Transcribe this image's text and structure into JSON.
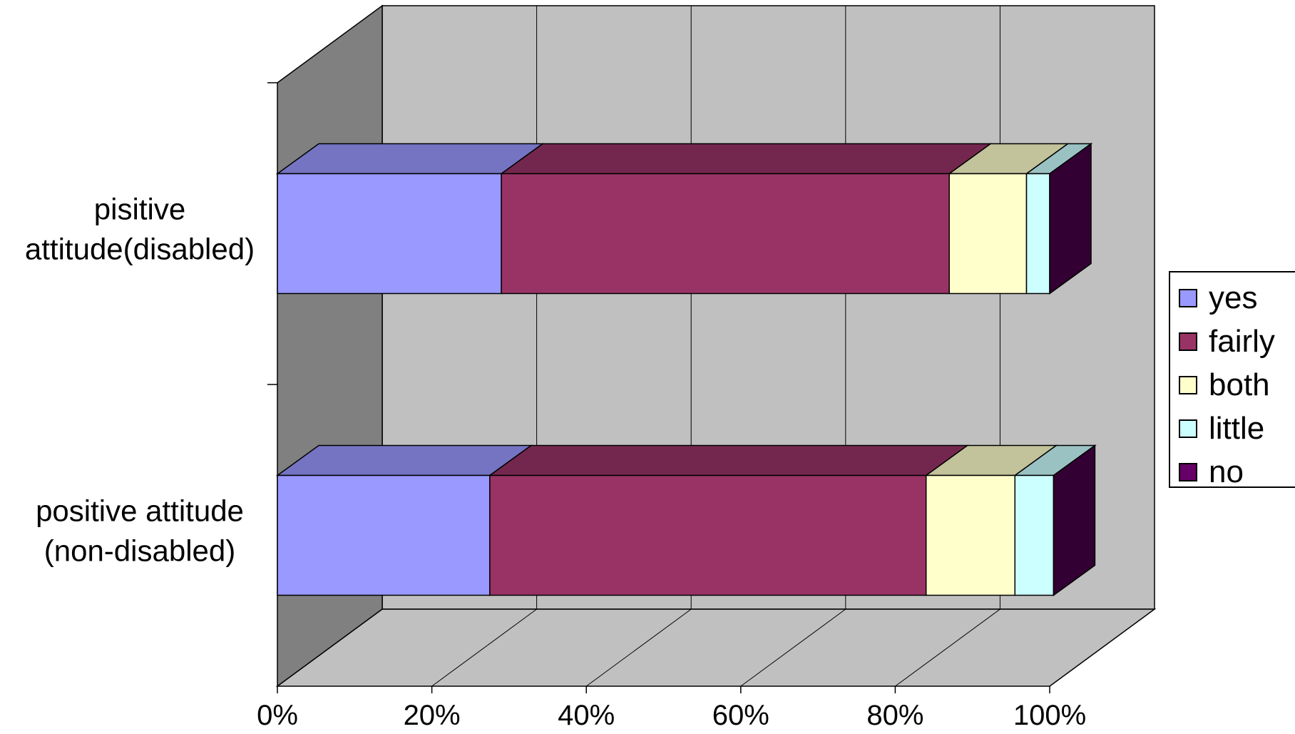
{
  "chart_data": {
    "type": "bar",
    "orientation": "horizontal",
    "stacked": "percent",
    "three_d": true,
    "categories": [
      "pisitive\nattitude(disabled)",
      "positive attitude\n(non-disabled)"
    ],
    "series": [
      {
        "name": "yes",
        "values": [
          29,
          27.5
        ]
      },
      {
        "name": "fairly",
        "values": [
          58,
          56.5
        ]
      },
      {
        "name": "both",
        "values": [
          10,
          11.5
        ]
      },
      {
        "name": "little",
        "values": [
          3,
          5
        ]
      },
      {
        "name": "no",
        "values": [
          0,
          0
        ]
      }
    ],
    "xlim": [
      0,
      100
    ],
    "x_ticks": [
      "0%",
      "20%",
      "40%",
      "60%",
      "80%",
      "100%"
    ],
    "grid": true,
    "legend_position": "right",
    "colors": {
      "yes": "#9999ff",
      "fairly": "#993366",
      "both": "#ffffcc",
      "little": "#ccffff",
      "no": "#660066",
      "wall": "#c0c0c0",
      "side_wall": "#808080",
      "floor": "#c0c0c0"
    }
  }
}
